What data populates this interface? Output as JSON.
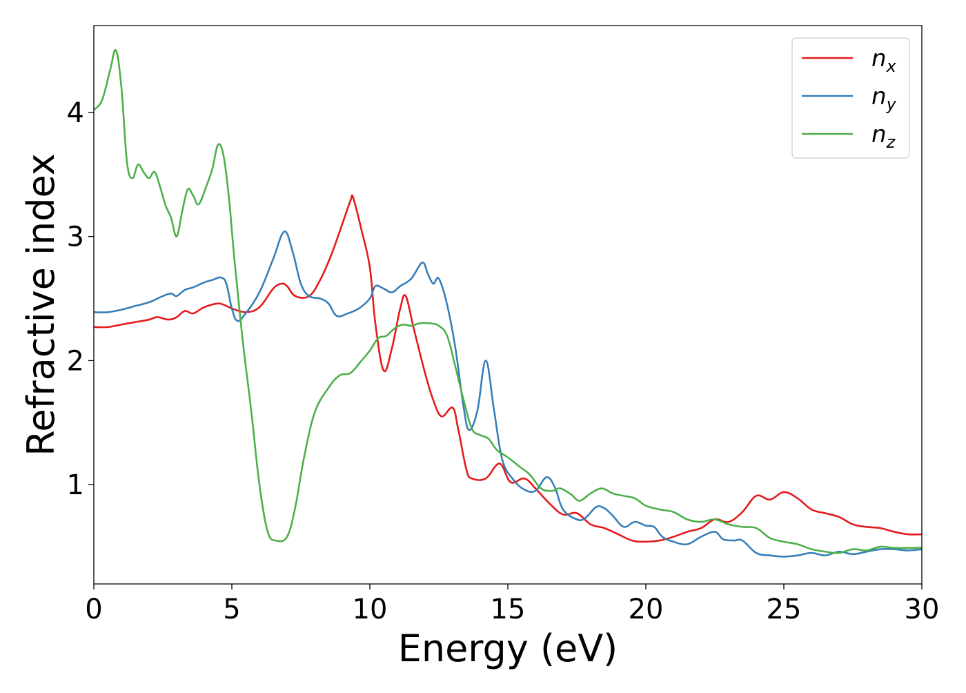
{
  "chart_data": {
    "type": "line",
    "title": "",
    "xlabel": "Energy (eV)",
    "ylabel": "Refractive index",
    "xlim": [
      0,
      30
    ],
    "ylim": [
      0.2,
      4.7
    ],
    "xticks": [
      0,
      5,
      10,
      15,
      20,
      25,
      30
    ],
    "yticks": [
      1,
      2,
      3,
      4
    ],
    "grid": false,
    "legend_position": "top-right",
    "series": [
      {
        "name": "n_x",
        "legend_base": "n",
        "legend_sub": "x",
        "color": "#e41a1c",
        "points": [
          [
            0,
            2.27
          ],
          [
            0.5,
            2.27
          ],
          [
            1,
            2.29
          ],
          [
            1.5,
            2.31
          ],
          [
            2,
            2.33
          ],
          [
            2.3,
            2.35
          ],
          [
            2.7,
            2.33
          ],
          [
            3,
            2.35
          ],
          [
            3.3,
            2.4
          ],
          [
            3.6,
            2.38
          ],
          [
            4,
            2.43
          ],
          [
            4.5,
            2.46
          ],
          [
            4.8,
            2.44
          ],
          [
            5,
            2.42
          ],
          [
            5.5,
            2.39
          ],
          [
            6,
            2.43
          ],
          [
            6.5,
            2.58
          ],
          [
            6.8,
            2.62
          ],
          [
            7,
            2.6
          ],
          [
            7.3,
            2.52
          ],
          [
            7.8,
            2.52
          ],
          [
            8.2,
            2.65
          ],
          [
            8.6,
            2.85
          ],
          [
            9,
            3.1
          ],
          [
            9.3,
            3.29
          ],
          [
            9.4,
            3.31
          ],
          [
            9.7,
            3.05
          ],
          [
            10,
            2.75
          ],
          [
            10.2,
            2.3
          ],
          [
            10.5,
            1.92
          ],
          [
            10.8,
            2.1
          ],
          [
            11.1,
            2.42
          ],
          [
            11.3,
            2.52
          ],
          [
            11.6,
            2.25
          ],
          [
            12,
            1.9
          ],
          [
            12.3,
            1.68
          ],
          [
            12.6,
            1.55
          ],
          [
            13,
            1.62
          ],
          [
            13.2,
            1.45
          ],
          [
            13.5,
            1.12
          ],
          [
            13.7,
            1.05
          ],
          [
            14.2,
            1.05
          ],
          [
            14.7,
            1.17
          ],
          [
            15.1,
            1.02
          ],
          [
            15.6,
            1.05
          ],
          [
            16,
            0.97
          ],
          [
            16.5,
            0.85
          ],
          [
            17,
            0.76
          ],
          [
            17.5,
            0.77
          ],
          [
            18,
            0.68
          ],
          [
            18.5,
            0.65
          ],
          [
            19,
            0.6
          ],
          [
            19.5,
            0.55
          ],
          [
            20,
            0.54
          ],
          [
            20.5,
            0.55
          ],
          [
            21,
            0.58
          ],
          [
            21.5,
            0.62
          ],
          [
            22,
            0.65
          ],
          [
            22.5,
            0.72
          ],
          [
            23,
            0.7
          ],
          [
            23.5,
            0.78
          ],
          [
            24,
            0.91
          ],
          [
            24.5,
            0.88
          ],
          [
            25,
            0.94
          ],
          [
            25.5,
            0.89
          ],
          [
            26,
            0.8
          ],
          [
            26.5,
            0.77
          ],
          [
            27,
            0.74
          ],
          [
            27.5,
            0.68
          ],
          [
            28,
            0.66
          ],
          [
            28.5,
            0.65
          ],
          [
            29,
            0.62
          ],
          [
            29.5,
            0.6
          ],
          [
            30,
            0.6
          ]
        ]
      },
      {
        "name": "n_y",
        "legend_base": "n",
        "legend_sub": "y",
        "color": "#377eb8",
        "points": [
          [
            0,
            2.39
          ],
          [
            0.5,
            2.39
          ],
          [
            1,
            2.41
          ],
          [
            1.5,
            2.44
          ],
          [
            2,
            2.47
          ],
          [
            2.5,
            2.52
          ],
          [
            2.8,
            2.54
          ],
          [
            3,
            2.52
          ],
          [
            3.3,
            2.57
          ],
          [
            3.6,
            2.59
          ],
          [
            4,
            2.63
          ],
          [
            4.3,
            2.65
          ],
          [
            4.6,
            2.67
          ],
          [
            4.8,
            2.62
          ],
          [
            5,
            2.42
          ],
          [
            5.2,
            2.32
          ],
          [
            5.5,
            2.38
          ],
          [
            6,
            2.55
          ],
          [
            6.5,
            2.82
          ],
          [
            6.9,
            3.04
          ],
          [
            7.2,
            2.88
          ],
          [
            7.5,
            2.62
          ],
          [
            7.8,
            2.52
          ],
          [
            8.2,
            2.5
          ],
          [
            8.5,
            2.46
          ],
          [
            8.8,
            2.36
          ],
          [
            9.2,
            2.38
          ],
          [
            9.6,
            2.42
          ],
          [
            10,
            2.5
          ],
          [
            10.2,
            2.6
          ],
          [
            10.5,
            2.58
          ],
          [
            10.8,
            2.55
          ],
          [
            11.1,
            2.6
          ],
          [
            11.5,
            2.66
          ],
          [
            11.9,
            2.79
          ],
          [
            12.1,
            2.7
          ],
          [
            12.3,
            2.62
          ],
          [
            12.5,
            2.66
          ],
          [
            12.8,
            2.45
          ],
          [
            13.1,
            2.1
          ],
          [
            13.4,
            1.62
          ],
          [
            13.6,
            1.44
          ],
          [
            13.9,
            1.6
          ],
          [
            14.2,
            2.0
          ],
          [
            14.5,
            1.6
          ],
          [
            14.8,
            1.2
          ],
          [
            15.2,
            1.04
          ],
          [
            15.6,
            0.96
          ],
          [
            16,
            0.95
          ],
          [
            16.4,
            1.06
          ],
          [
            16.7,
            0.98
          ],
          [
            17,
            0.8
          ],
          [
            17.5,
            0.72
          ],
          [
            17.8,
            0.73
          ],
          [
            18.2,
            0.82
          ],
          [
            18.5,
            0.81
          ],
          [
            18.8,
            0.75
          ],
          [
            19.2,
            0.66
          ],
          [
            19.6,
            0.7
          ],
          [
            20,
            0.67
          ],
          [
            20.3,
            0.66
          ],
          [
            20.6,
            0.58
          ],
          [
            21,
            0.54
          ],
          [
            21.5,
            0.52
          ],
          [
            22,
            0.58
          ],
          [
            22.5,
            0.62
          ],
          [
            22.8,
            0.56
          ],
          [
            23.2,
            0.55
          ],
          [
            23.5,
            0.55
          ],
          [
            24,
            0.45
          ],
          [
            24.5,
            0.43
          ],
          [
            25,
            0.42
          ],
          [
            25.5,
            0.43
          ],
          [
            26,
            0.45
          ],
          [
            26.5,
            0.43
          ],
          [
            27,
            0.46
          ],
          [
            27.5,
            0.44
          ],
          [
            28,
            0.46
          ],
          [
            28.5,
            0.48
          ],
          [
            29,
            0.48
          ],
          [
            29.5,
            0.47
          ],
          [
            30,
            0.48
          ]
        ]
      },
      {
        "name": "n_z",
        "legend_base": "n",
        "legend_sub": "z",
        "color": "#4daf4a",
        "points": [
          [
            0,
            4.02
          ],
          [
            0.3,
            4.1
          ],
          [
            0.6,
            4.35
          ],
          [
            0.8,
            4.5
          ],
          [
            1,
            4.2
          ],
          [
            1.2,
            3.6
          ],
          [
            1.4,
            3.47
          ],
          [
            1.6,
            3.58
          ],
          [
            1.8,
            3.52
          ],
          [
            2,
            3.47
          ],
          [
            2.2,
            3.52
          ],
          [
            2.4,
            3.4
          ],
          [
            2.6,
            3.25
          ],
          [
            2.8,
            3.15
          ],
          [
            3,
            3.0
          ],
          [
            3.2,
            3.2
          ],
          [
            3.4,
            3.38
          ],
          [
            3.6,
            3.33
          ],
          [
            3.8,
            3.26
          ],
          [
            4.1,
            3.42
          ],
          [
            4.3,
            3.55
          ],
          [
            4.5,
            3.74
          ],
          [
            4.7,
            3.65
          ],
          [
            4.9,
            3.3
          ],
          [
            5.1,
            2.8
          ],
          [
            5.4,
            2.15
          ],
          [
            5.7,
            1.6
          ],
          [
            6,
            1.0
          ],
          [
            6.3,
            0.62
          ],
          [
            6.6,
            0.55
          ],
          [
            7,
            0.58
          ],
          [
            7.3,
            0.82
          ],
          [
            7.6,
            1.2
          ],
          [
            8,
            1.58
          ],
          [
            8.5,
            1.78
          ],
          [
            8.9,
            1.88
          ],
          [
            9.3,
            1.9
          ],
          [
            9.7,
            2.0
          ],
          [
            10,
            2.08
          ],
          [
            10.3,
            2.18
          ],
          [
            10.6,
            2.2
          ],
          [
            10.9,
            2.26
          ],
          [
            11.2,
            2.29
          ],
          [
            11.5,
            2.28
          ],
          [
            11.8,
            2.3
          ],
          [
            12.2,
            2.3
          ],
          [
            12.5,
            2.28
          ],
          [
            12.8,
            2.2
          ],
          [
            13.1,
            1.95
          ],
          [
            13.4,
            1.68
          ],
          [
            13.7,
            1.45
          ],
          [
            14,
            1.4
          ],
          [
            14.3,
            1.37
          ],
          [
            14.6,
            1.28
          ],
          [
            15,
            1.22
          ],
          [
            15.4,
            1.15
          ],
          [
            15.8,
            1.08
          ],
          [
            16.2,
            0.97
          ],
          [
            16.6,
            0.95
          ],
          [
            16.9,
            0.97
          ],
          [
            17.3,
            0.92
          ],
          [
            17.6,
            0.87
          ],
          [
            18,
            0.93
          ],
          [
            18.4,
            0.97
          ],
          [
            18.8,
            0.93
          ],
          [
            19.2,
            0.91
          ],
          [
            19.6,
            0.89
          ],
          [
            20,
            0.83
          ],
          [
            20.5,
            0.8
          ],
          [
            21,
            0.78
          ],
          [
            21.5,
            0.72
          ],
          [
            22,
            0.7
          ],
          [
            22.5,
            0.72
          ],
          [
            23,
            0.68
          ],
          [
            23.5,
            0.66
          ],
          [
            24,
            0.65
          ],
          [
            24.5,
            0.57
          ],
          [
            25,
            0.54
          ],
          [
            25.5,
            0.52
          ],
          [
            26,
            0.48
          ],
          [
            26.5,
            0.46
          ],
          [
            27,
            0.45
          ],
          [
            27.5,
            0.48
          ],
          [
            28,
            0.47
          ],
          [
            28.5,
            0.5
          ],
          [
            29,
            0.49
          ],
          [
            29.5,
            0.49
          ],
          [
            30,
            0.49
          ]
        ]
      }
    ]
  }
}
